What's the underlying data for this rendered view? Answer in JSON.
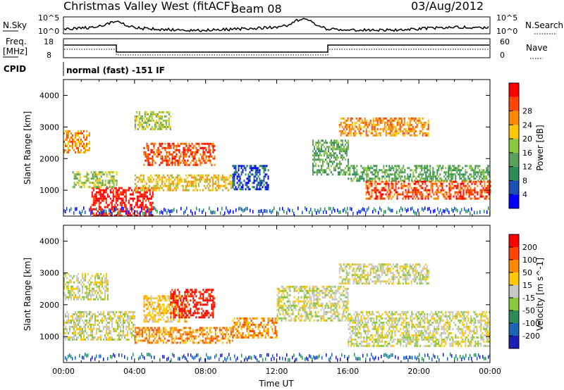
{
  "header": {
    "title": "Christmas Valley West (fitACF)",
    "beam": "Beam 08",
    "date": "03/Aug/2012"
  },
  "aux_panels": {
    "nsky_label": "N.Sky",
    "nsky_ticks": [
      "10^5",
      "10^0"
    ],
    "nsearch_label": "N.Search",
    "nsearch_ticks": [
      "10^5",
      "10^0"
    ],
    "freq_label_line1": "Freq.",
    "freq_label_line2": "[MHz]",
    "freq_ticks": [
      "18",
      "8"
    ],
    "nave_label": "Nave",
    "nave_ticks": [
      "60",
      "0"
    ],
    "cpid_label": "CPID",
    "cpid_text": "normal (fast) -151 IF"
  },
  "colors": {
    "power": [
      "#0000ff",
      "#1c4fb4",
      "#2e8b57",
      "#5aa05a",
      "#8cc63f",
      "#ffc800",
      "#ff8c00",
      "#ff4500",
      "#ff0000"
    ],
    "velocity": [
      "#1e1eb4",
      "#1e64b4",
      "#2e8b57",
      "#8cc63f",
      "#c8c8c8",
      "#ffc800",
      "#ff8c00",
      "#ff4500",
      "#ff0000"
    ]
  },
  "chart_data": [
    {
      "type": "heatmap",
      "name": "power",
      "ylabel": "Slant Range [km]",
      "xlim": [
        0,
        24
      ],
      "ylim": [
        180,
        4500
      ],
      "y_ticks": [
        1000,
        2000,
        3000,
        4000
      ],
      "colorbar_label": "Power [dB]",
      "colorbar_ticks": [
        "4",
        "8",
        "12",
        "16",
        "20",
        "24",
        "28"
      ],
      "echo_regions": [
        {
          "t": [
            0.0,
            1.5
          ],
          "r": [
            2200,
            2900
          ],
          "level": 6
        },
        {
          "t": [
            1.5,
            5.0
          ],
          "r": [
            200,
            1100
          ],
          "level": 8
        },
        {
          "t": [
            0.5,
            3.0
          ],
          "r": [
            1100,
            1600
          ],
          "level": 4
        },
        {
          "t": [
            4.0,
            9.5
          ],
          "r": [
            1000,
            1500
          ],
          "level": 5
        },
        {
          "t": [
            4.5,
            8.5
          ],
          "r": [
            1800,
            2500
          ],
          "level": 7
        },
        {
          "t": [
            4.0,
            6.0
          ],
          "r": [
            2900,
            3500
          ],
          "level": 4
        },
        {
          "t": [
            9.5,
            11.5
          ],
          "r": [
            1000,
            1800
          ],
          "level": 1
        },
        {
          "t": [
            14.0,
            16.0
          ],
          "r": [
            1500,
            2600
          ],
          "level": 3
        },
        {
          "t": [
            15.5,
            20.5
          ],
          "r": [
            2700,
            3300
          ],
          "level": 6
        },
        {
          "t": [
            16.0,
            24.0
          ],
          "r": [
            1300,
            1800
          ],
          "level": 3
        },
        {
          "t": [
            17.0,
            24.0
          ],
          "r": [
            700,
            1300
          ],
          "level": 7
        }
      ]
    },
    {
      "type": "heatmap",
      "name": "velocity",
      "ylabel": "Slant Range [km]",
      "xlabel": "Time UT",
      "xlim": [
        0,
        24
      ],
      "ylim": [
        180,
        4500
      ],
      "x_ticks": [
        "00:00",
        "04:00",
        "08:00",
        "12:00",
        "16:00",
        "20:00",
        "00:00"
      ],
      "y_ticks": [
        1000,
        2000,
        3000,
        4000
      ],
      "colorbar_label": "Velocity [m s^-1]",
      "colorbar_ticks": [
        "200",
        "100",
        "50",
        "15",
        "-15",
        "-50",
        "-100",
        "-200"
      ],
      "echo_regions": [
        {
          "t": [
            0.0,
            2.5
          ],
          "r": [
            2200,
            3000
          ],
          "level": 4
        },
        {
          "t": [
            0.0,
            4.0
          ],
          "r": [
            900,
            1800
          ],
          "level": 4
        },
        {
          "t": [
            4.0,
            9.5
          ],
          "r": [
            800,
            1300
          ],
          "level": 6
        },
        {
          "t": [
            4.5,
            7.0
          ],
          "r": [
            1500,
            2300
          ],
          "level": 5
        },
        {
          "t": [
            6.0,
            8.5
          ],
          "r": [
            1600,
            2500
          ],
          "level": 8
        },
        {
          "t": [
            9.5,
            12.0
          ],
          "r": [
            1000,
            1600
          ],
          "level": 6
        },
        {
          "t": [
            12.0,
            16.0
          ],
          "r": [
            1500,
            2600
          ],
          "level": 4
        },
        {
          "t": [
            15.5,
            20.5
          ],
          "r": [
            2700,
            3300
          ],
          "level": 4
        },
        {
          "t": [
            16.0,
            24.0
          ],
          "r": [
            700,
            1800
          ],
          "level": 4
        }
      ]
    }
  ]
}
